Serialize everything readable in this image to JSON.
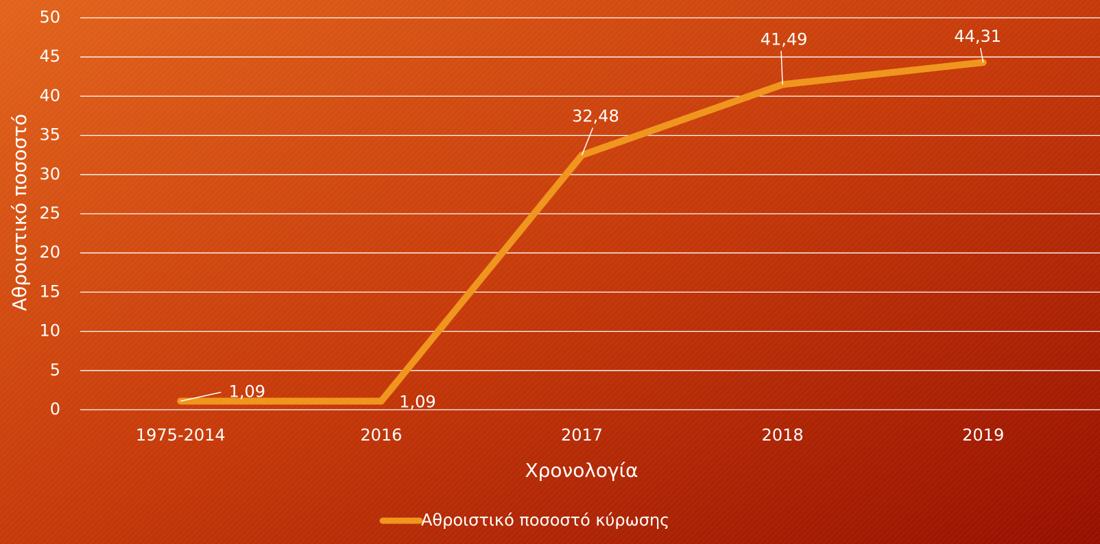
{
  "chart_data": {
    "type": "line",
    "categories": [
      "1975-2014",
      "2016",
      "2017",
      "2018",
      "2019"
    ],
    "series": [
      {
        "name": "Αθροιστικό ποσοστό κύρωσης",
        "color": "#f0961e",
        "values": [
          1.09,
          1.09,
          32.48,
          41.49,
          44.31
        ],
        "value_labels": [
          "1,09",
          "1,09",
          "32,48",
          "41,49",
          "44,31"
        ]
      }
    ],
    "ylim": [
      0,
      50
    ],
    "yticks": [
      0,
      5,
      10,
      15,
      20,
      25,
      30,
      35,
      40,
      45,
      50
    ],
    "xlabel": "Χρονολογία",
    "ylabel": "Αθροιστικό ποσοστό",
    "grid": true,
    "legend": "bottom"
  }
}
